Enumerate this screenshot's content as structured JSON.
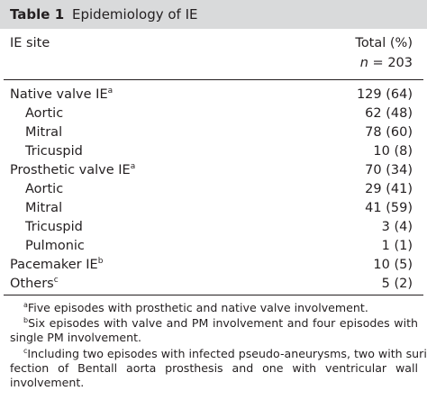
{
  "table": {
    "number": "Table 1",
    "title": "Epidemiology of IE",
    "col_site": "IE site",
    "col_total": "Total (%)",
    "n_symbol": "n",
    "n_value": " = 203"
  },
  "rows": [
    {
      "label": "Native valve IE",
      "sup": "a",
      "value": "129 (64)"
    },
    {
      "label": "Aortic",
      "value": "62 (48)"
    },
    {
      "label": "Mitral",
      "value": "78 (60)"
    },
    {
      "label": "Tricuspid",
      "value": "10 (8)"
    },
    {
      "label": "Prosthetic valve IE",
      "sup": "a",
      "value": "70 (34)"
    },
    {
      "label": "Aortic",
      "value": "29 (41)"
    },
    {
      "label": "Mitral",
      "value": "41 (59)"
    },
    {
      "label": "Tricuspid",
      "value": "3 (4)"
    },
    {
      "label": "Pulmonic",
      "value": "1 (1)"
    },
    {
      "label": "Pacemaker IE",
      "sup": "b",
      "value": "10 (5)"
    },
    {
      "label": "Others",
      "sup": "c",
      "value": "5 (2)"
    }
  ],
  "footnotes": {
    "a_mark": "a",
    "a_text": "Five episodes with prosthetic and native valve involvement.",
    "b_mark": "b",
    "b_line1": "Six episodes with valve and PM involvement and four episodes with",
    "b_line2": "single PM involvement.",
    "c_mark": "c",
    "c_line1": "Including two episodes with infected pseudo-aneurysms, two with surin-",
    "c_line2": "fection of Bentall aorta prosthesis and one with ventricular wall",
    "c_line3": "involvement."
  }
}
